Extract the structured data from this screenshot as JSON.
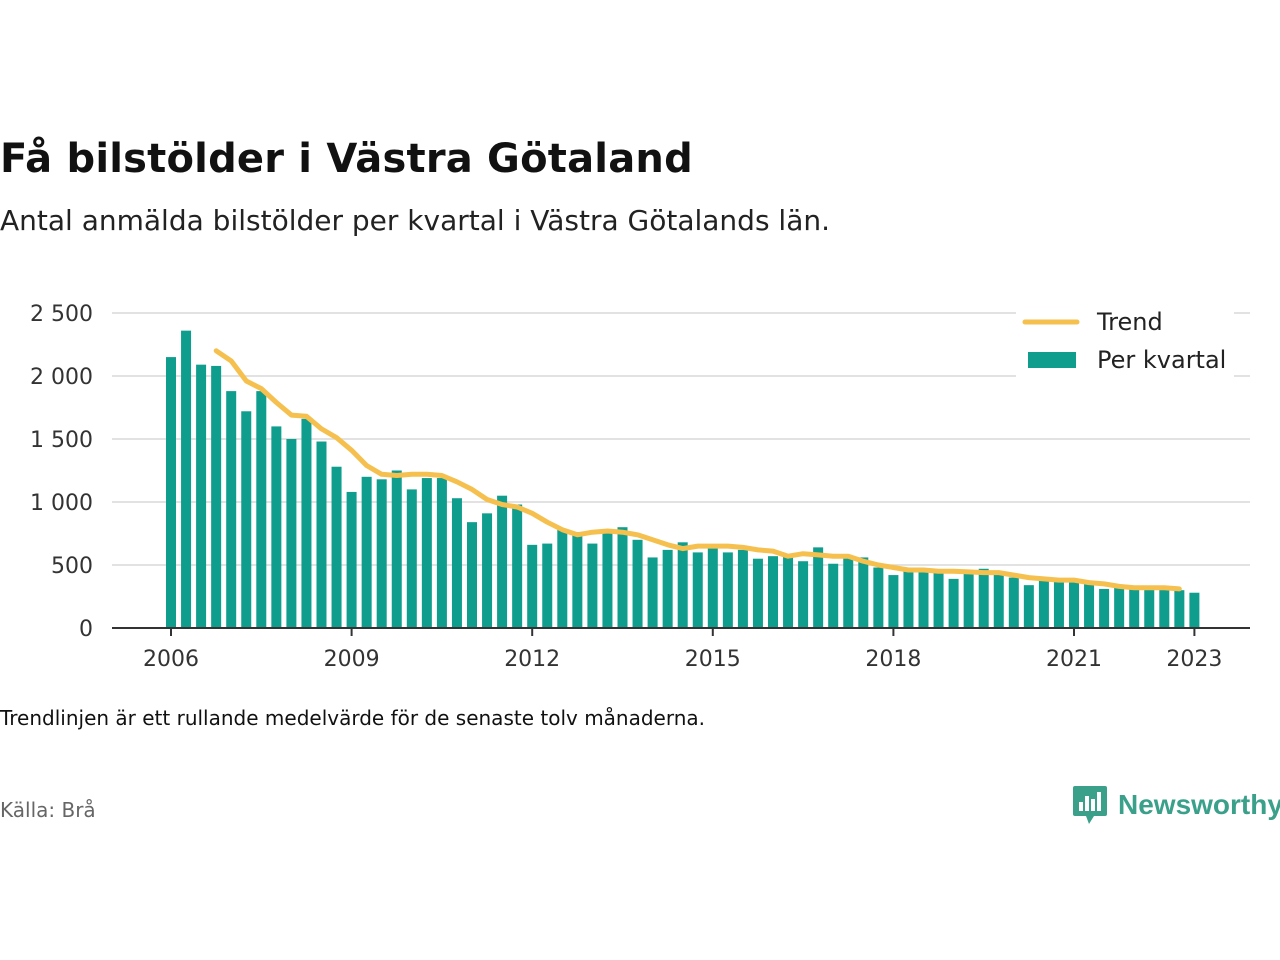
{
  "header": {
    "title": "Få bilstölder i Västra Götaland",
    "subtitle": "Antal anmälda bilstölder per kvartal i Västra Götalands län."
  },
  "footer": {
    "note": "Trendlinjen är ett rullande medelvärde för de senaste tolv månaderna.",
    "source": "Källa: Brå",
    "brand": "Newsworthy"
  },
  "colors": {
    "bar": "#0f9d8e",
    "trend": "#f5c04e",
    "brand": "#3aa08a",
    "grid": "#d9d9d9",
    "axis": "#333333"
  },
  "chart_data": {
    "type": "bar",
    "x_unit": "quarter",
    "x_start": "2006-Q1",
    "ylim": [
      0,
      2500
    ],
    "y_ticks": [
      0,
      500,
      1000,
      1500,
      2000,
      2500
    ],
    "y_tick_labels": [
      "0",
      "500",
      "1 000",
      "1 500",
      "2 000",
      "2 500"
    ],
    "x_tick_labels": [
      "2006",
      "2009",
      "2012",
      "2015",
      "2018",
      "2021",
      "2023"
    ],
    "x_tick_quarter_index": [
      0,
      12,
      24,
      36,
      48,
      60,
      68
    ],
    "legend": {
      "position": "top-right",
      "entries": [
        "Trend",
        "Per kvartal"
      ]
    },
    "grid": true,
    "series": [
      {
        "name": "Per kvartal",
        "kind": "bar",
        "values": [
          2150,
          2360,
          2090,
          2080,
          1880,
          1720,
          1880,
          1600,
          1500,
          1660,
          1480,
          1280,
          1080,
          1200,
          1180,
          1250,
          1100,
          1190,
          1190,
          1030,
          840,
          910,
          1050,
          980,
          660,
          670,
          780,
          760,
          670,
          780,
          800,
          700,
          560,
          620,
          680,
          600,
          640,
          600,
          620,
          550,
          570,
          570,
          530,
          640,
          510,
          560,
          560,
          480,
          420,
          450,
          460,
          440,
          390,
          450,
          470,
          430,
          400,
          340,
          380,
          370,
          370,
          350,
          310,
          340,
          310,
          310,
          310,
          300,
          280
        ]
      },
      {
        "name": "Trend",
        "kind": "line",
        "start_index": 3,
        "values": [
          2200,
          2120,
          1960,
          1900,
          1790,
          1690,
          1680,
          1580,
          1510,
          1410,
          1290,
          1220,
          1210,
          1220,
          1220,
          1210,
          1160,
          1100,
          1020,
          980,
          960,
          910,
          840,
          780,
          740,
          760,
          770,
          760,
          740,
          700,
          660,
          630,
          650,
          650,
          650,
          640,
          620,
          610,
          570,
          590,
          580,
          570,
          570,
          530,
          500,
          480,
          460,
          460,
          450,
          450,
          445,
          440,
          440,
          420,
          400,
          390,
          380,
          380,
          360,
          350,
          330,
          320,
          320,
          320,
          310
        ]
      }
    ]
  }
}
